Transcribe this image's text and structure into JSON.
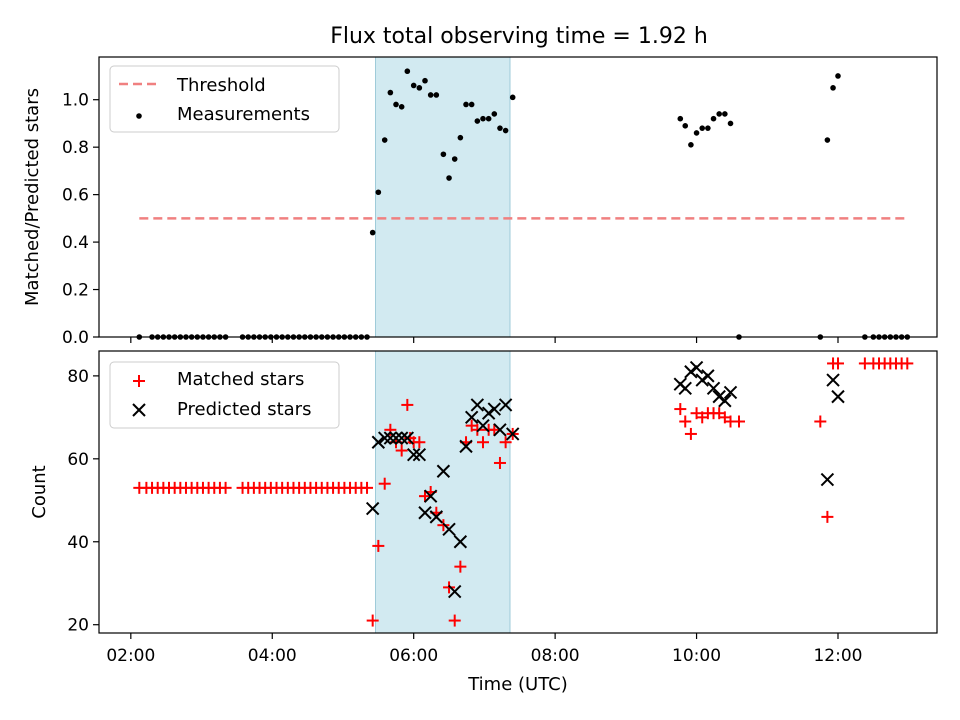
{
  "chart_data": [
    {
      "type": "scatter",
      "title": "Flux total observing time = 1.92 h",
      "xlabel": "",
      "ylabel": "Matched/Predicted stars",
      "ylim": [
        0,
        1.18
      ],
      "yticks": [
        0.0,
        0.2,
        0.4,
        0.6,
        0.8,
        1.0
      ],
      "ytick_labels": [
        "0.0",
        "0.2",
        "0.4",
        "0.6",
        "0.8",
        "1.0"
      ],
      "x_unit": "hours UTC",
      "xlim": [
        1.55,
        13.4
      ],
      "xticks": [
        2,
        4,
        6,
        8,
        10,
        12
      ],
      "legend_position": "upper left",
      "shaded_interval": [
        5.5,
        7.42
      ],
      "series": [
        {
          "name": "Threshold",
          "style": "dashed-line",
          "color": "#f08080",
          "x": [
            2.12,
            12.95
          ],
          "y": [
            0.5,
            0.5
          ]
        },
        {
          "name": "Measurements",
          "style": "dot",
          "color": "#000000",
          "x": [
            2.12,
            2.3,
            2.38,
            2.46,
            2.54,
            2.62,
            2.7,
            2.78,
            2.86,
            2.94,
            3.02,
            3.1,
            3.18,
            3.26,
            3.34,
            3.58,
            3.66,
            3.74,
            3.82,
            3.9,
            3.98,
            4.06,
            4.14,
            4.22,
            4.3,
            4.38,
            4.46,
            4.54,
            4.62,
            4.7,
            4.78,
            4.86,
            4.94,
            5.02,
            5.1,
            5.18,
            5.26,
            5.34,
            5.42,
            5.5,
            5.59,
            5.67,
            5.75,
            5.83,
            5.91,
            6.0,
            6.08,
            6.16,
            6.24,
            6.32,
            6.42,
            6.5,
            6.58,
            6.66,
            6.74,
            6.82,
            6.9,
            6.98,
            7.06,
            7.14,
            7.22,
            7.3,
            7.4,
            9.77,
            9.84,
            9.92,
            10.0,
            10.08,
            10.16,
            10.24,
            10.32,
            10.4,
            10.48,
            10.6,
            11.75,
            11.85,
            11.93,
            12.0,
            12.38,
            12.5,
            12.58,
            12.66,
            12.74,
            12.82,
            12.9,
            12.98
          ],
          "y": [
            0,
            0,
            0,
            0,
            0,
            0,
            0,
            0,
            0,
            0,
            0,
            0,
            0,
            0,
            0,
            0,
            0,
            0,
            0,
            0,
            0,
            0,
            0,
            0,
            0,
            0,
            0,
            0,
            0,
            0,
            0,
            0,
            0,
            0,
            0,
            0,
            0,
            0,
            0.44,
            0.61,
            0.83,
            1.03,
            0.98,
            0.97,
            1.12,
            1.06,
            1.05,
            1.08,
            1.02,
            1.02,
            0.77,
            0.67,
            0.75,
            0.84,
            0.98,
            0.98,
            0.91,
            0.92,
            0.92,
            0.94,
            0.88,
            0.87,
            1.01,
            0.92,
            0.89,
            0.81,
            0.86,
            0.88,
            0.88,
            0.92,
            0.94,
            0.94,
            0.9,
            0,
            0,
            0.83,
            1.05,
            1.1,
            0,
            0,
            0,
            0,
            0,
            0,
            0,
            0
          ]
        }
      ]
    },
    {
      "type": "scatter",
      "title": "",
      "xlabel": "Time (UTC)",
      "ylabel": "Count",
      "ylim": [
        18,
        86
      ],
      "yticks": [
        20,
        40,
        60,
        80
      ],
      "ytick_labels": [
        "20",
        "40",
        "60",
        "80"
      ],
      "x_unit": "hours UTC",
      "xlim": [
        1.55,
        13.4
      ],
      "xticks": [
        2,
        4,
        6,
        8,
        10,
        12
      ],
      "xtick_labels": [
        "02:00",
        "04:00",
        "06:00",
        "08:00",
        "10:00",
        "12:00"
      ],
      "legend_position": "upper left",
      "shaded_interval": [
        5.5,
        7.42
      ],
      "series": [
        {
          "name": "Matched stars",
          "marker": "plus",
          "color": "#ff0000",
          "x": [
            2.12,
            2.22,
            2.3,
            2.38,
            2.46,
            2.54,
            2.62,
            2.7,
            2.78,
            2.86,
            2.94,
            3.02,
            3.1,
            3.18,
            3.26,
            3.34,
            3.58,
            3.66,
            3.74,
            3.82,
            3.9,
            3.98,
            4.06,
            4.14,
            4.22,
            4.3,
            4.38,
            4.46,
            4.54,
            4.62,
            4.7,
            4.78,
            4.86,
            4.94,
            5.02,
            5.1,
            5.18,
            5.26,
            5.34,
            5.42,
            5.5,
            5.59,
            5.67,
            5.75,
            5.83,
            5.91,
            5.95,
            6.0,
            6.08,
            6.16,
            6.24,
            6.32,
            6.42,
            6.5,
            6.58,
            6.66,
            6.74,
            6.82,
            6.9,
            6.98,
            7.06,
            7.14,
            7.22,
            7.3,
            7.4,
            9.77,
            9.84,
            9.92,
            10.0,
            10.08,
            10.16,
            10.24,
            10.32,
            10.4,
            10.48,
            10.6,
            11.75,
            11.85,
            11.93,
            12.0,
            12.38,
            12.5,
            12.58,
            12.66,
            12.74,
            12.82,
            12.9,
            12.98
          ],
          "y": [
            53,
            53,
            53,
            53,
            53,
            53,
            53,
            53,
            53,
            53,
            53,
            53,
            53,
            53,
            53,
            53,
            53,
            53,
            53,
            53,
            53,
            53,
            53,
            53,
            53,
            53,
            53,
            53,
            53,
            53,
            53,
            53,
            53,
            53,
            53,
            53,
            53,
            53,
            53,
            21,
            39,
            54,
            67,
            64,
            62,
            73,
            65,
            64,
            64,
            51,
            52,
            47,
            44,
            29,
            21,
            34,
            64,
            68,
            67,
            64,
            67,
            67,
            59,
            64,
            66,
            72,
            69,
            66,
            71,
            70,
            71,
            71,
            71,
            70,
            69,
            69,
            69,
            46,
            83,
            83,
            83,
            83,
            83,
            83,
            83,
            83,
            83,
            83
          ]
        },
        {
          "name": "Predicted stars",
          "marker": "x",
          "color": "#000000",
          "x": [
            5.42,
            5.5,
            5.59,
            5.67,
            5.75,
            5.83,
            5.91,
            6.0,
            6.08,
            6.16,
            6.24,
            6.32,
            6.42,
            6.5,
            6.58,
            6.66,
            6.74,
            6.82,
            6.9,
            6.98,
            7.06,
            7.14,
            7.22,
            7.3,
            7.4,
            9.77,
            9.84,
            9.92,
            10.0,
            10.08,
            10.16,
            10.24,
            10.32,
            10.4,
            10.48,
            11.85,
            11.93,
            12.0
          ],
          "y": [
            48,
            64,
            65,
            65,
            65,
            65,
            65,
            61,
            61,
            47,
            51,
            46,
            57,
            43,
            28,
            40,
            63,
            70,
            73,
            68,
            71,
            72,
            67,
            73,
            66,
            78,
            77,
            81,
            82,
            79,
            80,
            77,
            75,
            74,
            76,
            55,
            79,
            75
          ]
        }
      ]
    }
  ]
}
